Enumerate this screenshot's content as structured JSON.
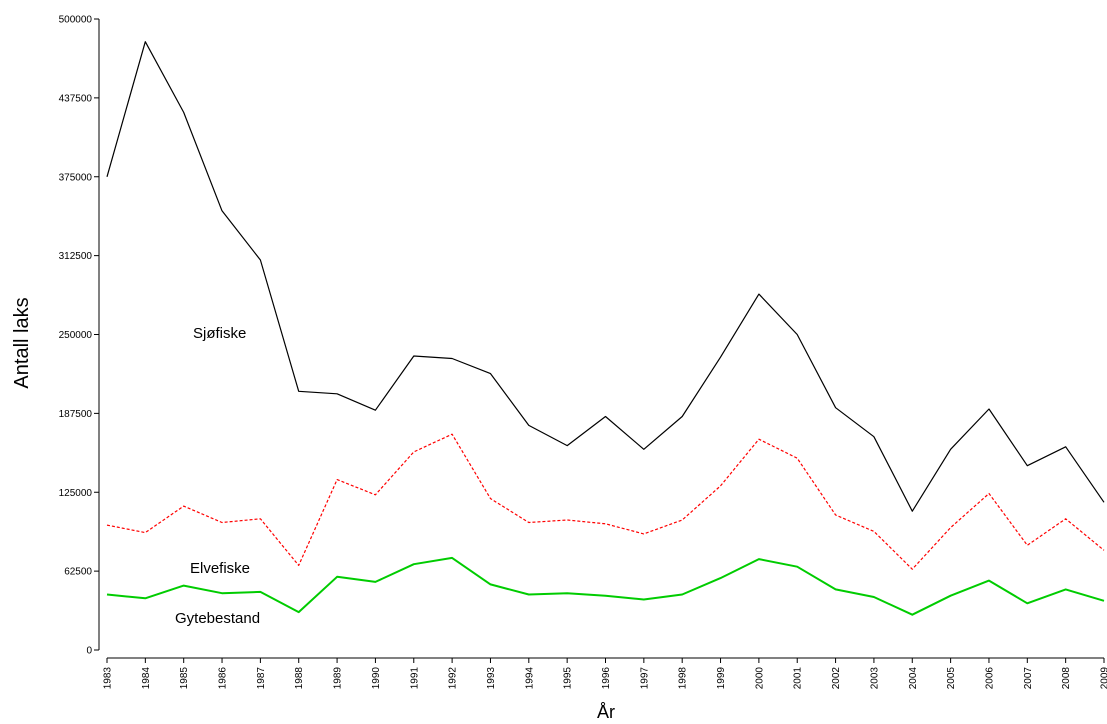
{
  "chart_data": {
    "type": "line",
    "title": "",
    "xlabel": "År",
    "ylabel": "Antall laks",
    "ylim": [
      0,
      500000
    ],
    "y_ticks": [
      0,
      62500,
      125000,
      187500,
      250000,
      312500,
      375000,
      437500,
      500000
    ],
    "y_tick_labels": [
      "0",
      "62500",
      "125000",
      "187500",
      "250000",
      "312500",
      "375000",
      "437500",
      "500000"
    ],
    "grid": false,
    "x": [
      "1983",
      "1984",
      "1985",
      "1986",
      "1987",
      "1988",
      "1989",
      "1990",
      "1991",
      "1992",
      "1993",
      "1994",
      "1995",
      "1996",
      "1997",
      "1998",
      "1999",
      "2000",
      "2001",
      "2002",
      "2003",
      "2004",
      "2005",
      "2006",
      "2007",
      "2008",
      "2009"
    ],
    "series": [
      {
        "name": "Sjøfiske",
        "color": "#000000",
        "line_style": "solid",
        "values": [
          375000,
          482000,
          426000,
          348000,
          309000,
          205000,
          203000,
          190000,
          233000,
          231000,
          219000,
          178000,
          162000,
          185000,
          159000,
          185000,
          232000,
          282000,
          250000,
          192000,
          169000,
          110000,
          159000,
          191000,
          146000,
          161000,
          117000
        ]
      },
      {
        "name": "Elvefiske",
        "color": "#ff0000",
        "line_style": "dashed",
        "values": [
          99000,
          93000,
          114000,
          101000,
          104000,
          67000,
          135000,
          123000,
          157000,
          171000,
          120000,
          101000,
          103000,
          100000,
          92000,
          103000,
          130000,
          167000,
          152000,
          107000,
          94000,
          64000,
          97000,
          124000,
          83000,
          104000,
          79000
        ]
      },
      {
        "name": "Gytebestand",
        "color": "#00cc00",
        "line_style": "solid",
        "values": [
          44000,
          41000,
          51000,
          45000,
          46000,
          30000,
          58000,
          54000,
          68000,
          73000,
          52000,
          44000,
          45000,
          43000,
          40000,
          44000,
          57000,
          72000,
          66000,
          48000,
          42000,
          28000,
          43000,
          55000,
          37000,
          48000,
          39000
        ]
      }
    ],
    "annotations": [
      "Sjøfiske",
      "Elvefiske",
      "Gytebestand"
    ]
  }
}
